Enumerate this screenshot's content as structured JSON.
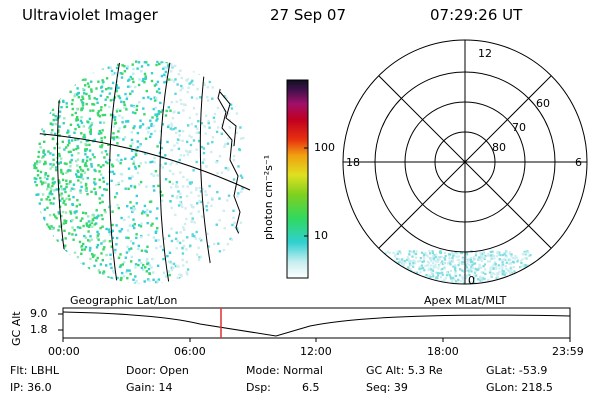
{
  "header": {
    "instrument": "Ultraviolet Imager",
    "date": "27 Sep 07",
    "time": "07:29:26 UT"
  },
  "colorbar": {
    "unit_label": "photon cm⁻²s⁻¹",
    "ticks": [
      "100",
      "10"
    ]
  },
  "polar_plot": {
    "mlt_labels": {
      "top": "12",
      "left": "18",
      "right": "6",
      "bottom": "0"
    },
    "lat_labels": [
      "60",
      "70",
      "80"
    ]
  },
  "timeline": {
    "left_caption": "Geographic Lat/Lon",
    "right_caption": "Apex MLat/MLT",
    "axis_label": "GC Alt",
    "y_ticks": [
      "9.0",
      "1.8"
    ],
    "x_ticks": [
      "00:00",
      "06:00",
      "12:00",
      "18:00",
      "23:59"
    ],
    "marker_color": "#e03030"
  },
  "info": {
    "row1": {
      "filter": "Flt: LBHL",
      "door": "Door: Open",
      "mode": "Mode: Normal",
      "gc_alt": "GC Alt: 5.3 Re",
      "glat": "GLat: -53.9"
    },
    "row2": {
      "ip": "IP: 36.0",
      "gain": "Gain: 14",
      "dsp_label": "Dsp:",
      "dsp_value": "6.5",
      "seq": "Seq: 39",
      "glon": "GLon: 218.5"
    }
  }
}
